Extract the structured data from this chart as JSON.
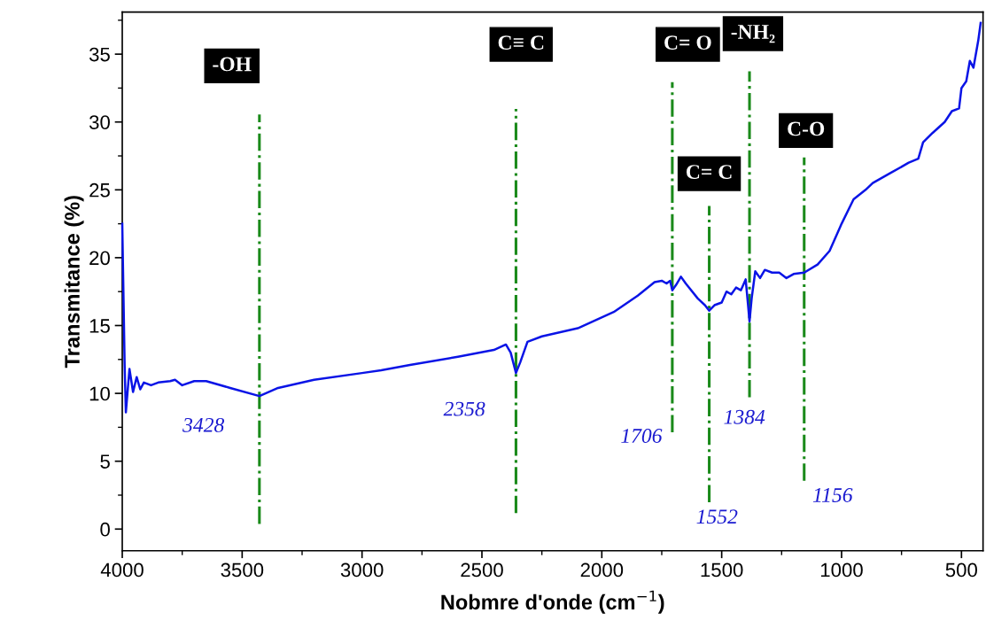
{
  "chart_data": {
    "type": "line",
    "xlabel": "Nobmre d'onde (cm$^{−1}$)",
    "ylabel": "Transmitance (%)",
    "xlim": [
      4000,
      410
    ],
    "ylim": [
      -1.6,
      38.1
    ],
    "xticks": [
      4000,
      3500,
      3000,
      2500,
      2000,
      1500,
      1000,
      500
    ],
    "yticks": [
      0,
      5,
      10,
      15,
      20,
      25,
      30,
      35
    ],
    "grid": false,
    "legend": false,
    "marker": "none",
    "line_style": "solid",
    "series": [
      {
        "color": "#0a14e6",
        "x": [
          4000,
          3990,
          3985,
          3970,
          3955,
          3940,
          3925,
          3910,
          3880,
          3850,
          3800,
          3780,
          3750,
          3700,
          3650,
          3550,
          3428,
          3350,
          3200,
          3000,
          2920,
          2800,
          2600,
          2450,
          2400,
          2380,
          2358,
          2340,
          2310,
          2250,
          2100,
          1950,
          1850,
          1780,
          1750,
          1730,
          1715,
          1706,
          1690,
          1670,
          1650,
          1600,
          1570,
          1552,
          1530,
          1500,
          1480,
          1460,
          1440,
          1420,
          1400,
          1390,
          1384,
          1375,
          1360,
          1340,
          1320,
          1290,
          1260,
          1230,
          1200,
          1156,
          1100,
          1050,
          1000,
          950,
          900,
          870,
          800,
          720,
          680,
          660,
          620,
          570,
          540,
          510,
          500,
          480,
          465,
          450,
          430,
          420
        ],
        "values": [
          22.5,
          12.0,
          8.6,
          11.8,
          10.1,
          11.2,
          10.3,
          10.8,
          10.6,
          10.8,
          10.9,
          11.0,
          10.6,
          10.9,
          10.9,
          10.4,
          9.8,
          10.4,
          11.0,
          11.5,
          11.7,
          12.1,
          12.7,
          13.2,
          13.6,
          13.0,
          11.5,
          12.3,
          13.8,
          14.2,
          14.8,
          16.0,
          17.2,
          18.2,
          18.3,
          18.1,
          18.3,
          17.6,
          18.0,
          18.6,
          18.1,
          17.0,
          16.5,
          16.1,
          16.5,
          16.7,
          17.5,
          17.3,
          17.8,
          17.6,
          18.4,
          16.5,
          15.3,
          17.0,
          19.0,
          18.5,
          19.1,
          18.9,
          18.9,
          18.5,
          18.8,
          18.9,
          19.5,
          20.5,
          22.5,
          24.3,
          25.0,
          25.5,
          26.2,
          27.0,
          27.3,
          28.5,
          29.2,
          30.0,
          30.8,
          31.0,
          32.5,
          33.0,
          34.5,
          34.0,
          36.0,
          37.3
        ]
      }
    ],
    "ref_lines": [
      {
        "axis": "x",
        "value": 3428,
        "label": "-OH",
        "color": "#1a8a1a",
        "line_style": "dashdot"
      },
      {
        "axis": "x",
        "value": 2358,
        "label": "C≡ C",
        "color": "#1a8a1a",
        "line_style": "dashdot"
      },
      {
        "axis": "x",
        "value": 1706,
        "label": "C= O",
        "color": "#1a8a1a",
        "line_style": "dashdot"
      },
      {
        "axis": "x",
        "value": 1552,
        "label": "C= C",
        "color": "#1a8a1a",
        "line_style": "dashdot"
      },
      {
        "axis": "x",
        "value": 1384,
        "label": "-NH₂",
        "color": "#1a8a1a",
        "line_style": "dashdot"
      },
      {
        "axis": "x",
        "value": 1156,
        "label": "C-O",
        "color": "#1a8a1a",
        "line_style": "dashdot"
      }
    ],
    "annotations": [
      "3428",
      "2358",
      "1706",
      "1552",
      "1384",
      "1156"
    ]
  }
}
